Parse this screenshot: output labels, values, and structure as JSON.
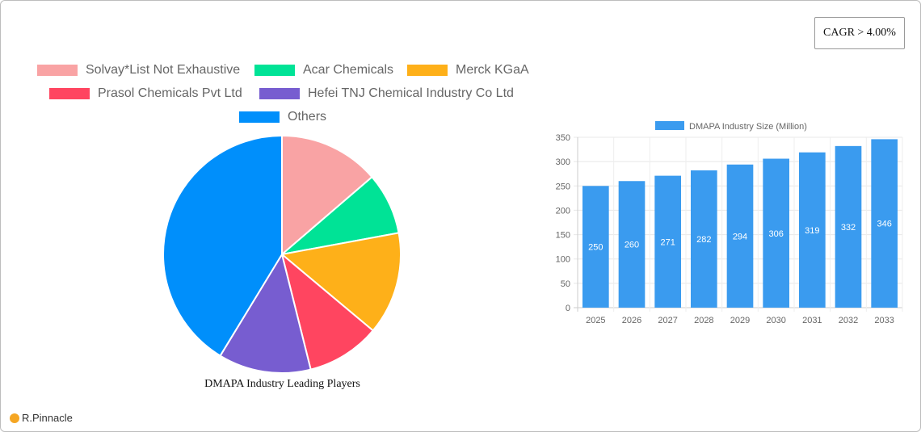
{
  "cagr_label": "CAGR > 4.00%",
  "logo_text": "R.Pinnacle",
  "chart_data": [
    {
      "type": "pie",
      "title": "DMAPA Industry Leading Players",
      "legend_position": "top",
      "labels": [
        "Solvay*List Not Exhaustive",
        "Acar Chemicals",
        "Merck KGaA",
        "Prasol Chemicals Pvt  Ltd",
        "Hefei TNJ Chemical Industry Co Ltd",
        "Others"
      ],
      "values": [
        13.7,
        8.4,
        14.0,
        10.0,
        12.6,
        41.3
      ],
      "colors": [
        "#f9a3a4",
        "#00e396",
        "#feb019",
        "#ff4560",
        "#775dd0",
        "#008ffb"
      ]
    },
    {
      "type": "bar",
      "legend_position": "top",
      "series": [
        {
          "name": "DMAPA Industry Size (Million)",
          "values": [
            250,
            260,
            271,
            282,
            294,
            306,
            319,
            332,
            346
          ],
          "color": "#3a9bef"
        }
      ],
      "categories": [
        "2025",
        "2026",
        "2027",
        "2028",
        "2029",
        "2030",
        "2031",
        "2032",
        "2033"
      ],
      "ylim": [
        0,
        350
      ],
      "yticks": [
        0,
        50,
        100,
        150,
        200,
        250,
        300,
        350
      ],
      "grid": true
    }
  ]
}
